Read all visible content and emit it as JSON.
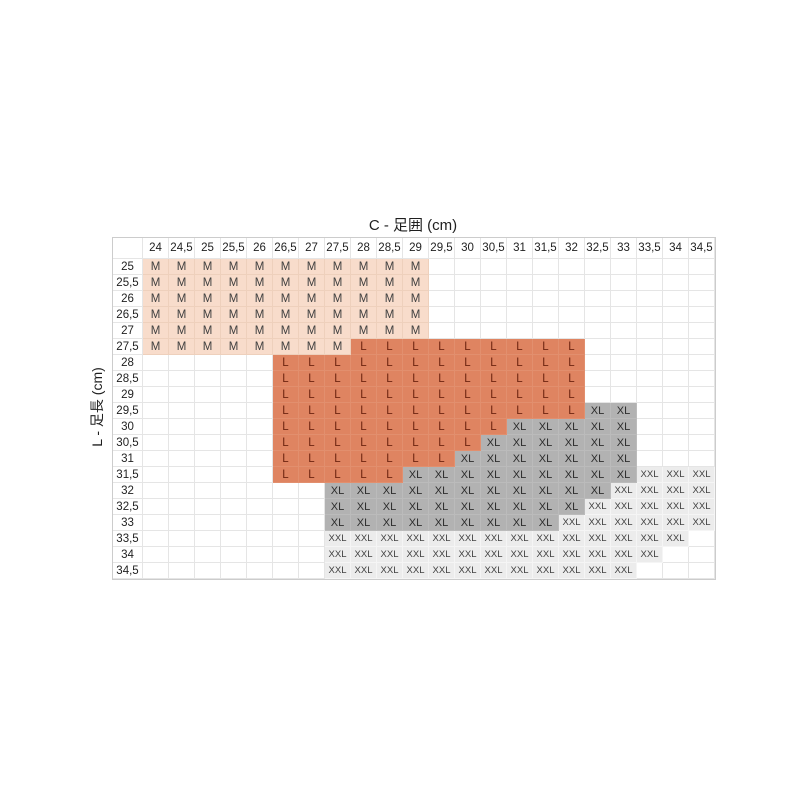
{
  "chart_data": {
    "type": "heatmap",
    "title": "C - 足囲 (cm)",
    "ylabel": "L - 足長 (cm)",
    "columns": [
      "24",
      "24,5",
      "25",
      "25,5",
      "26",
      "26,5",
      "27",
      "27,5",
      "28",
      "28,5",
      "29",
      "29,5",
      "30",
      "30,5",
      "31",
      "31,5",
      "32",
      "32,5",
      "33",
      "33,5",
      "34",
      "34,5"
    ],
    "rows": [
      "25",
      "25,5",
      "26",
      "26,5",
      "27",
      "27,5",
      "28",
      "28,5",
      "29",
      "29,5",
      "30",
      "30,5",
      "31",
      "31,5",
      "32",
      "32,5",
      "33",
      "33,5",
      "34",
      "34,5"
    ],
    "sizes": [
      "M",
      "L",
      "XL",
      "XXL"
    ],
    "cells": [
      [
        "M",
        "M",
        "M",
        "M",
        "M",
        "M",
        "M",
        "M",
        "M",
        "M",
        "M",
        "",
        "",
        "",
        "",
        "",
        "",
        "",
        "",
        "",
        "",
        ""
      ],
      [
        "M",
        "M",
        "M",
        "M",
        "M",
        "M",
        "M",
        "M",
        "M",
        "M",
        "M",
        "",
        "",
        "",
        "",
        "",
        "",
        "",
        "",
        "",
        "",
        ""
      ],
      [
        "M",
        "M",
        "M",
        "M",
        "M",
        "M",
        "M",
        "M",
        "M",
        "M",
        "M",
        "",
        "",
        "",
        "",
        "",
        "",
        "",
        "",
        "",
        "",
        ""
      ],
      [
        "M",
        "M",
        "M",
        "M",
        "M",
        "M",
        "M",
        "M",
        "M",
        "M",
        "M",
        "",
        "",
        "",
        "",
        "",
        "",
        "",
        "",
        "",
        "",
        ""
      ],
      [
        "M",
        "M",
        "M",
        "M",
        "M",
        "M",
        "M",
        "M",
        "M",
        "M",
        "M",
        "",
        "",
        "",
        "",
        "",
        "",
        "",
        "",
        "",
        "",
        ""
      ],
      [
        "M",
        "M",
        "M",
        "M",
        "M",
        "M",
        "M",
        "M",
        "L",
        "L",
        "L",
        "L",
        "L",
        "L",
        "L",
        "L",
        "L",
        "",
        "",
        "",
        "",
        ""
      ],
      [
        "",
        "",
        "",
        "",
        "",
        "L",
        "L",
        "L",
        "L",
        "L",
        "L",
        "L",
        "L",
        "L",
        "L",
        "L",
        "L",
        "",
        "",
        "",
        "",
        ""
      ],
      [
        "",
        "",
        "",
        "",
        "",
        "L",
        "L",
        "L",
        "L",
        "L",
        "L",
        "L",
        "L",
        "L",
        "L",
        "L",
        "L",
        "",
        "",
        "",
        "",
        ""
      ],
      [
        "",
        "",
        "",
        "",
        "",
        "L",
        "L",
        "L",
        "L",
        "L",
        "L",
        "L",
        "L",
        "L",
        "L",
        "L",
        "L",
        "",
        "",
        "",
        "",
        ""
      ],
      [
        "",
        "",
        "",
        "",
        "",
        "L",
        "L",
        "L",
        "L",
        "L",
        "L",
        "L",
        "L",
        "L",
        "L",
        "L",
        "L",
        "XL",
        "XL",
        "",
        "",
        ""
      ],
      [
        "",
        "",
        "",
        "",
        "",
        "L",
        "L",
        "L",
        "L",
        "L",
        "L",
        "L",
        "L",
        "L",
        "XL",
        "XL",
        "XL",
        "XL",
        "XL",
        "",
        "",
        ""
      ],
      [
        "",
        "",
        "",
        "",
        "",
        "L",
        "L",
        "L",
        "L",
        "L",
        "L",
        "L",
        "L",
        "XL",
        "XL",
        "XL",
        "XL",
        "XL",
        "XL",
        "",
        "",
        ""
      ],
      [
        "",
        "",
        "",
        "",
        "",
        "L",
        "L",
        "L",
        "L",
        "L",
        "L",
        "L",
        "XL",
        "XL",
        "XL",
        "XL",
        "XL",
        "XL",
        "XL",
        "",
        "",
        ""
      ],
      [
        "",
        "",
        "",
        "",
        "",
        "L",
        "L",
        "L",
        "L",
        "L",
        "XL",
        "XL",
        "XL",
        "XL",
        "XL",
        "XL",
        "XL",
        "XL",
        "XL",
        "XXL",
        "XXL",
        "XXL"
      ],
      [
        "",
        "",
        "",
        "",
        "",
        "",
        "",
        "XL",
        "XL",
        "XL",
        "XL",
        "XL",
        "XL",
        "XL",
        "XL",
        "XL",
        "XL",
        "XL",
        "XXL",
        "XXL",
        "XXL",
        "XXL"
      ],
      [
        "",
        "",
        "",
        "",
        "",
        "",
        "",
        "XL",
        "XL",
        "XL",
        "XL",
        "XL",
        "XL",
        "XL",
        "XL",
        "XL",
        "XL",
        "XXL",
        "XXL",
        "XXL",
        "XXL",
        "XXL"
      ],
      [
        "",
        "",
        "",
        "",
        "",
        "",
        "",
        "XL",
        "XL",
        "XL",
        "XL",
        "XL",
        "XL",
        "XL",
        "XL",
        "XL",
        "XXL",
        "XXL",
        "XXL",
        "XXL",
        "XXL",
        "XXL"
      ],
      [
        "",
        "",
        "",
        "",
        "",
        "",
        "",
        "XXL",
        "XXL",
        "XXL",
        "XXL",
        "XXL",
        "XXL",
        "XXL",
        "XXL",
        "XXL",
        "XXL",
        "XXL",
        "XXL",
        "XXL",
        "XXL",
        ""
      ],
      [
        "",
        "",
        "",
        "",
        "",
        "",
        "",
        "XXL",
        "XXL",
        "XXL",
        "XXL",
        "XXL",
        "XXL",
        "XXL",
        "XXL",
        "XXL",
        "XXL",
        "XXL",
        "XXL",
        "XXL",
        "",
        ""
      ],
      [
        "",
        "",
        "",
        "",
        "",
        "",
        "",
        "XXL",
        "XXL",
        "XXL",
        "XXL",
        "XXL",
        "XXL",
        "XXL",
        "XXL",
        "XXL",
        "XXL",
        "XXL",
        "XXL",
        "",
        "",
        ""
      ]
    ],
    "colors": {
      "M": "#f8dccb",
      "L": "#df8461",
      "XL": "#b2b2b2",
      "XXL": "#ececec",
      "empty": "#ffffff"
    },
    "text_colors": {
      "M": "#3f3f3f",
      "L": "#6d2410",
      "XL": "#2d2d2d",
      "XXL": "#3f3f3f"
    }
  }
}
